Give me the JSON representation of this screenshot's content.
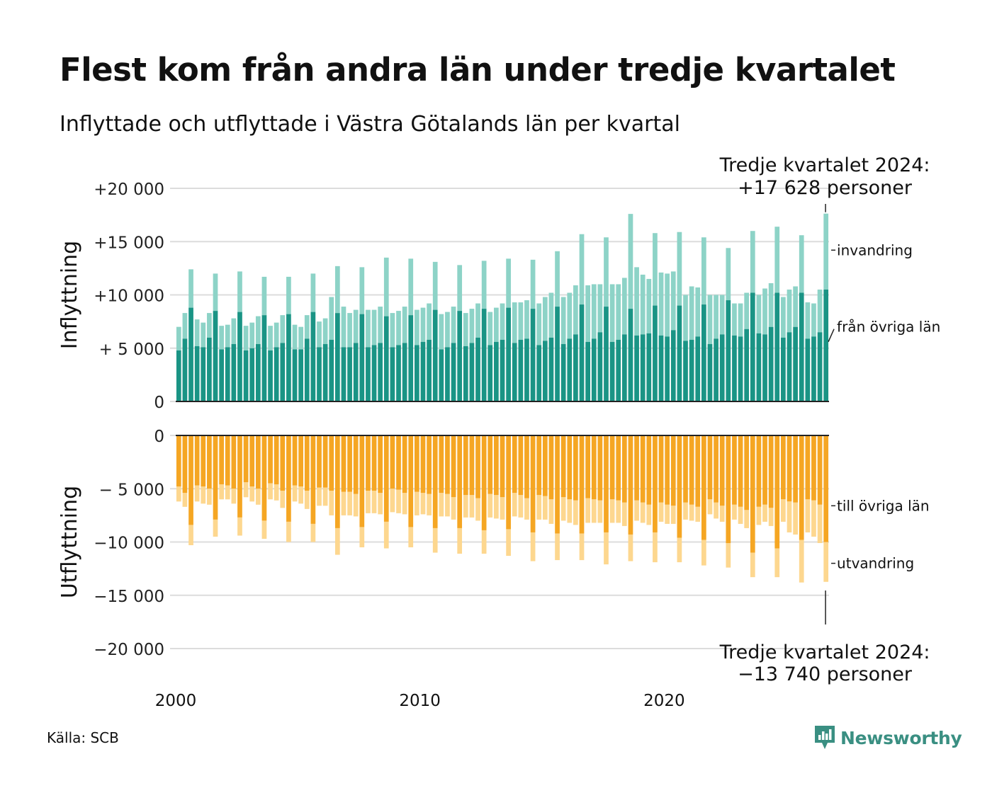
{
  "title": "Flest kom från andra län under tredje kvartalet",
  "subtitle": "Inflyttade och utflyttade i Västra Götalands län per kvartal",
  "source": "Källa: SCB",
  "brand": "Newsworthy",
  "colors": {
    "in_domestic": "#1a9485",
    "in_immigration": "#8dd3c7",
    "out_domestic": "#f5a623",
    "out_emigration": "#fdd78f",
    "brand": "#3a8f82"
  },
  "chart_data": {
    "type": "bar",
    "stacked": true,
    "frequency": "quarterly",
    "start_period": "2000-Q1",
    "end_period": "2024-Q3",
    "panels": [
      {
        "axis_title": "Inflyttning",
        "ylim": [
          0,
          20000
        ],
        "y_ticks": [
          0,
          5000,
          10000,
          15000,
          20000
        ],
        "y_tick_labels": [
          "0",
          "+ 5 000",
          "+10 000",
          "+15 000",
          "+20 000"
        ],
        "series": [
          {
            "name": "från övriga län",
            "color": "#1a9485",
            "values": [
              4800,
              5900,
              8800,
              5200,
              5100,
              6000,
              8500,
              4900,
              5100,
              5400,
              8400,
              4800,
              5000,
              5400,
              8100,
              4800,
              5100,
              5500,
              8200,
              4900,
              4900,
              5900,
              8400,
              5100,
              5400,
              5800,
              8300,
              5100,
              5100,
              5500,
              8200,
              5100,
              5300,
              5500,
              8000,
              5100,
              5300,
              5500,
              8100,
              5300,
              5600,
              5800,
              8600,
              4900,
              5100,
              5500,
              8500,
              5200,
              5500,
              6000,
              8700,
              5300,
              5600,
              5800,
              8800,
              5500,
              5800,
              5900,
              8700,
              5300,
              5700,
              6000,
              8900,
              5400,
              5900,
              6300,
              9100,
              5600,
              5900,
              6500,
              8900,
              5600,
              5800,
              6300,
              8700,
              6200,
              6300,
              6400,
              9000,
              6200,
              6100,
              6700,
              9000,
              5700,
              5800,
              6100,
              9100,
              5400,
              5900,
              6300,
              9500,
              6200,
              6100,
              6800,
              10200,
              6400,
              6300,
              7000,
              10200,
              6000,
              6500,
              7000,
              10200,
              5900,
              6100,
              6500,
              10500
            ]
          },
          {
            "name": "invandring",
            "color": "#8dd3c7",
            "values": [
              2200,
              2400,
              3600,
              2500,
              2300,
              2300,
              3500,
              2200,
              2100,
              2400,
              3800,
              2300,
              2400,
              2600,
              3600,
              2300,
              2300,
              2600,
              3500,
              2300,
              2100,
              2200,
              3600,
              2400,
              2400,
              4000,
              4400,
              3800,
              3200,
              3100,
              4400,
              3500,
              3300,
              3400,
              5500,
              3200,
              3200,
              3400,
              5300,
              3300,
              3200,
              3400,
              4500,
              3300,
              3300,
              3400,
              4300,
              3100,
              3200,
              3200,
              4500,
              3100,
              3200,
              3400,
              4600,
              3800,
              3500,
              3600,
              4600,
              3900,
              4100,
              4200,
              5200,
              4400,
              4300,
              4600,
              6600,
              5300,
              5100,
              4500,
              6500,
              5400,
              5200,
              5300,
              8900,
              6400,
              5600,
              5100,
              6800,
              5900,
              5900,
              5500,
              6900,
              4300,
              5000,
              4600,
              6300,
              4600,
              4100,
              3700,
              4900,
              3000,
              3100,
              3400,
              5800,
              3600,
              4300,
              4100,
              6200,
              3800,
              4000,
              3800,
              5400,
              3400,
              3100,
              4000,
              7128
            ]
          }
        ],
        "annotation": {
          "text_line1": "Tredje kvartalet 2024:",
          "text_line2": "+17 628 personer"
        },
        "legend": [
          "invandring",
          "från övriga län"
        ]
      },
      {
        "axis_title": "Utflyttning",
        "ylim": [
          -20000,
          0
        ],
        "y_ticks": [
          0,
          -5000,
          -10000,
          -15000,
          -20000
        ],
        "y_tick_labels": [
          "0",
          "− 5 000",
          "−10 000",
          "−15 000",
          "−20 000"
        ],
        "series": [
          {
            "name": "till övriga län",
            "color": "#f5a623",
            "values": [
              -4800,
              -5400,
              -8400,
              -4700,
              -4800,
              -5000,
              -7900,
              -4600,
              -4700,
              -5000,
              -7700,
              -4400,
              -4800,
              -5000,
              -8000,
              -4500,
              -4600,
              -5200,
              -8100,
              -4700,
              -4800,
              -5200,
              -8300,
              -4900,
              -4900,
              -5200,
              -8700,
              -5300,
              -5300,
              -5500,
              -8600,
              -5200,
              -5200,
              -5400,
              -8100,
              -5000,
              -5100,
              -5400,
              -8600,
              -5300,
              -5400,
              -5500,
              -8700,
              -5400,
              -5500,
              -5800,
              -8700,
              -5600,
              -5600,
              -5900,
              -8900,
              -5500,
              -5600,
              -5800,
              -8800,
              -5400,
              -5600,
              -5900,
              -9100,
              -5600,
              -5700,
              -6000,
              -9200,
              -5800,
              -6000,
              -6100,
              -9200,
              -5900,
              -6000,
              -6100,
              -9100,
              -6000,
              -6100,
              -6300,
              -9300,
              -6100,
              -6300,
              -6500,
              -9100,
              -6300,
              -6500,
              -6600,
              -9600,
              -6300,
              -6500,
              -6700,
              -9800,
              -6000,
              -6300,
              -6600,
              -10100,
              -6500,
              -6700,
              -7000,
              -11000,
              -6700,
              -6500,
              -6800,
              -10600,
              -6000,
              -6200,
              -6300,
              -9800,
              -6000,
              -6100,
              -6500,
              -10000
            ]
          },
          {
            "name": "utvandring",
            "color": "#fdd78f",
            "values": [
              -1400,
              -1300,
              -1900,
              -1500,
              -1600,
              -1500,
              -1600,
              -1400,
              -1300,
              -1400,
              -1700,
              -1400,
              -1400,
              -1500,
              -1700,
              -1500,
              -1500,
              -1600,
              -1900,
              -1500,
              -1600,
              -1700,
              -1700,
              -1700,
              -1700,
              -2300,
              -2500,
              -2200,
              -2200,
              -2100,
              -1900,
              -2100,
              -2100,
              -2000,
              -2500,
              -2200,
              -2200,
              -2000,
              -1900,
              -2200,
              -2000,
              -2000,
              -2300,
              -2200,
              -2100,
              -2100,
              -2400,
              -2100,
              -2100,
              -2100,
              -2200,
              -2200,
              -2200,
              -2100,
              -2500,
              -2200,
              -2100,
              -2000,
              -2700,
              -2300,
              -2200,
              -2300,
              -2500,
              -2200,
              -2200,
              -2300,
              -2500,
              -2300,
              -2200,
              -2100,
              -3000,
              -2200,
              -2100,
              -2200,
              -2500,
              -1900,
              -1900,
              -1900,
              -2800,
              -1800,
              -1800,
              -1700,
              -2300,
              -1600,
              -1500,
              -1400,
              -2400,
              -1400,
              -1500,
              -1500,
              -2300,
              -1400,
              -1600,
              -1700,
              -2300,
              -1700,
              -1600,
              -1700,
              -2700,
              -2100,
              -2900,
              -3000,
              -4000,
              -3100,
              -3400,
              -3600,
              -3740
            ]
          }
        ],
        "annotation": {
          "text_line1": "Tredje kvartalet 2024:",
          "text_line2": "−13 740 personer"
        },
        "legend": [
          "till övriga län",
          "utvandring"
        ]
      }
    ],
    "x_ticks": [
      2000,
      2010,
      2020
    ],
    "x_tick_labels": [
      "2000",
      "2010",
      "2020"
    ],
    "grid": true
  }
}
